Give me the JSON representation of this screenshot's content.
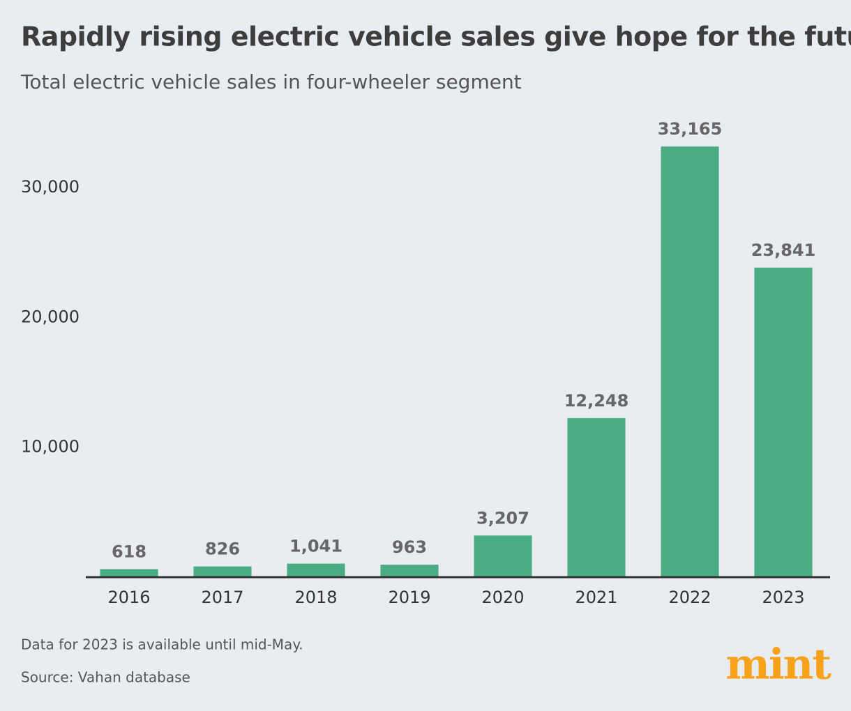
{
  "chart_data": {
    "type": "bar",
    "title": "Rapidly rising electric vehicle sales give hope for the future",
    "subtitle": "Total electric vehicle sales in four-wheeler segment",
    "categories": [
      "2016",
      "2017",
      "2018",
      "2019",
      "2020",
      "2021",
      "2022",
      "2023"
    ],
    "values": [
      618,
      826,
      1041,
      963,
      3207,
      12248,
      33165,
      23841
    ],
    "value_labels": [
      "618",
      "826",
      "1,041",
      "963",
      "3,207",
      "12,248",
      "33,165",
      "23,841"
    ],
    "color": "#4aac82",
    "ylim": [
      0,
      35000
    ],
    "yticks": [
      {
        "value": 10000,
        "label": "10,000"
      },
      {
        "value": 20000,
        "label": "20,000"
      },
      {
        "value": 30000,
        "label": "30,000"
      }
    ],
    "grid": false,
    "note": "Data for 2023 is available until mid-May.",
    "source": "Source: Vahan database",
    "logo": "mint"
  }
}
